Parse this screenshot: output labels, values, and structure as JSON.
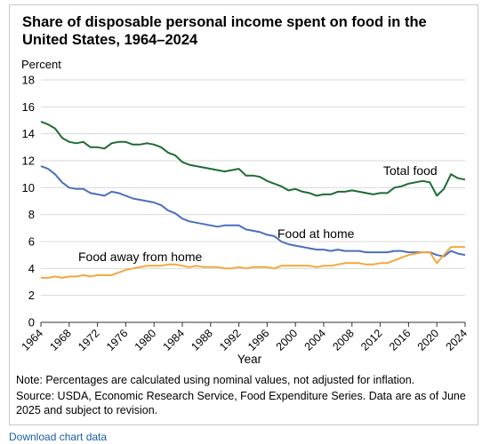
{
  "title": "Share of disposable personal income spent on food in the United States, 1964–2024",
  "note": "Note: Percentages are calculated using nominal values, not adjusted for inflation.",
  "source": "Source: USDA, Economic Research Service, Food Expenditure Series. Data are as of June 2025 and subject to revision.",
  "link_text": "Download chart data",
  "chart_data": {
    "type": "line",
    "title": "Share of disposable personal income spent on food in the United States, 1964–2024",
    "xlabel": "Year",
    "ylabel": "Percent",
    "xlim": [
      1964,
      2024
    ],
    "ylim": [
      0,
      18
    ],
    "xticks": [
      1964,
      1968,
      1972,
      1976,
      1980,
      1984,
      1988,
      1992,
      1996,
      2000,
      2004,
      2008,
      2012,
      2016,
      2020,
      2024
    ],
    "yticks": [
      0,
      2,
      4,
      6,
      8,
      10,
      12,
      14,
      16,
      18
    ],
    "grid": "horizontal",
    "x": [
      1964,
      1965,
      1966,
      1967,
      1968,
      1969,
      1970,
      1971,
      1972,
      1973,
      1974,
      1975,
      1976,
      1977,
      1978,
      1979,
      1980,
      1981,
      1982,
      1983,
      1984,
      1985,
      1986,
      1987,
      1988,
      1989,
      1990,
      1991,
      1992,
      1993,
      1994,
      1995,
      1996,
      1997,
      1998,
      1999,
      2000,
      2001,
      2002,
      2003,
      2004,
      2005,
      2006,
      2007,
      2008,
      2009,
      2010,
      2011,
      2012,
      2013,
      2014,
      2015,
      2016,
      2017,
      2018,
      2019,
      2020,
      2021,
      2022,
      2023,
      2024
    ],
    "series": [
      {
        "name": "Total food",
        "color": "#1e6b35",
        "values": [
          14.9,
          14.7,
          14.4,
          13.7,
          13.4,
          13.3,
          13.4,
          13.0,
          13.0,
          12.9,
          13.3,
          13.4,
          13.4,
          13.2,
          13.2,
          13.3,
          13.2,
          13.0,
          12.6,
          12.4,
          11.9,
          11.7,
          11.6,
          11.5,
          11.4,
          11.3,
          11.2,
          11.3,
          11.4,
          10.9,
          10.9,
          10.8,
          10.5,
          10.3,
          10.1,
          9.8,
          9.9,
          9.7,
          9.6,
          9.4,
          9.5,
          9.5,
          9.7,
          9.7,
          9.8,
          9.7,
          9.6,
          9.5,
          9.6,
          9.6,
          10.0,
          10.1,
          10.3,
          10.4,
          10.5,
          10.4,
          9.4,
          9.9,
          11.0,
          10.7,
          10.6
        ]
      },
      {
        "name": "Food at home",
        "color": "#4a6fbf",
        "values": [
          11.6,
          11.4,
          11.0,
          10.4,
          10.0,
          9.9,
          9.9,
          9.6,
          9.5,
          9.4,
          9.7,
          9.6,
          9.4,
          9.2,
          9.1,
          9.0,
          8.9,
          8.7,
          8.3,
          8.1,
          7.7,
          7.5,
          7.4,
          7.3,
          7.2,
          7.1,
          7.2,
          7.2,
          7.2,
          6.9,
          6.8,
          6.7,
          6.5,
          6.4,
          6.0,
          5.8,
          5.7,
          5.6,
          5.5,
          5.4,
          5.4,
          5.3,
          5.4,
          5.3,
          5.3,
          5.3,
          5.2,
          5.2,
          5.2,
          5.2,
          5.3,
          5.3,
          5.2,
          5.2,
          5.2,
          5.2,
          5.0,
          4.9,
          5.3,
          5.1,
          5.0
        ]
      },
      {
        "name": "Food away from home",
        "color": "#f2a93b",
        "values": [
          3.3,
          3.3,
          3.4,
          3.3,
          3.4,
          3.4,
          3.5,
          3.4,
          3.5,
          3.5,
          3.5,
          3.7,
          3.9,
          4.0,
          4.1,
          4.2,
          4.2,
          4.2,
          4.3,
          4.3,
          4.2,
          4.1,
          4.2,
          4.1,
          4.1,
          4.1,
          4.0,
          4.0,
          4.1,
          4.0,
          4.1,
          4.1,
          4.1,
          4.0,
          4.2,
          4.2,
          4.2,
          4.2,
          4.2,
          4.1,
          4.2,
          4.2,
          4.3,
          4.4,
          4.4,
          4.4,
          4.3,
          4.3,
          4.4,
          4.4,
          4.6,
          4.8,
          5.0,
          5.1,
          5.2,
          5.2,
          4.4,
          5.0,
          5.6,
          5.6,
          5.6
        ]
      }
    ]
  }
}
